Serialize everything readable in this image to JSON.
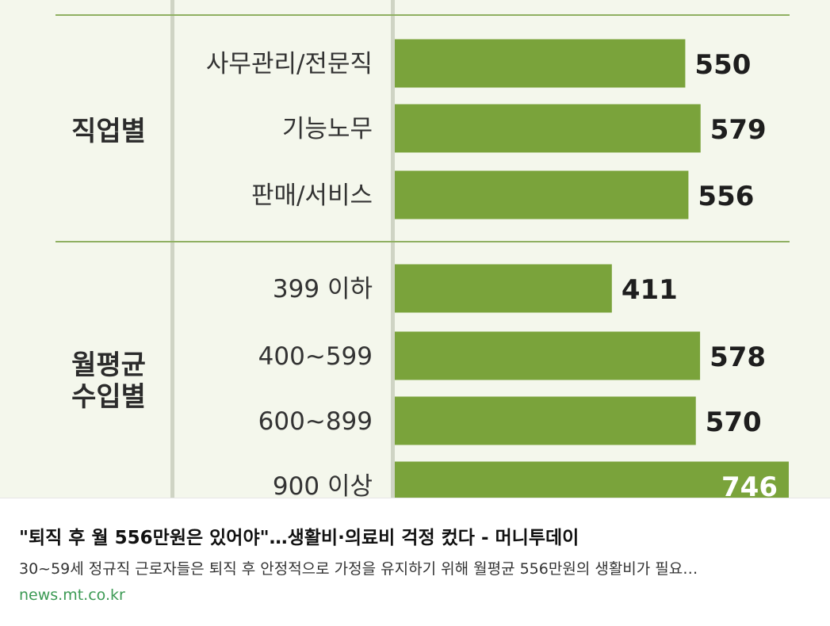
{
  "chart_data": {
    "type": "bar",
    "orientation": "horizontal",
    "bar_color": "#7aa33b",
    "groups": [
      {
        "label": "직업별",
        "categories": [
          "사무관리/전문직",
          "기능노무",
          "판매/서비스"
        ],
        "values": [
          550,
          579,
          556
        ]
      },
      {
        "label": "월평균\n수입별",
        "categories": [
          "399 이하",
          "400~599",
          "600~899",
          "900 이상"
        ],
        "values": [
          411,
          578,
          570,
          746
        ]
      }
    ],
    "categories": [
      "사무관리/전문직",
      "기능노무",
      "판매/서비스",
      "399 이하",
      "400~599",
      "600~899",
      "900 이상"
    ],
    "values": [
      550,
      579,
      556,
      411,
      578,
      570,
      746
    ],
    "xlim": [
      0,
      746
    ]
  },
  "link_preview": {
    "title": "\"퇴직 후 월 556만원은 있어야\"…생활비·의료비 걱정 컸다 - 머니투데이",
    "description": "30~59세 정규직 근로자들은 퇴직 후 안정적으로 가정을 유지하기 위해 월평균 556만원의 생활비가 필요…",
    "domain": "news.mt.co.kr"
  }
}
